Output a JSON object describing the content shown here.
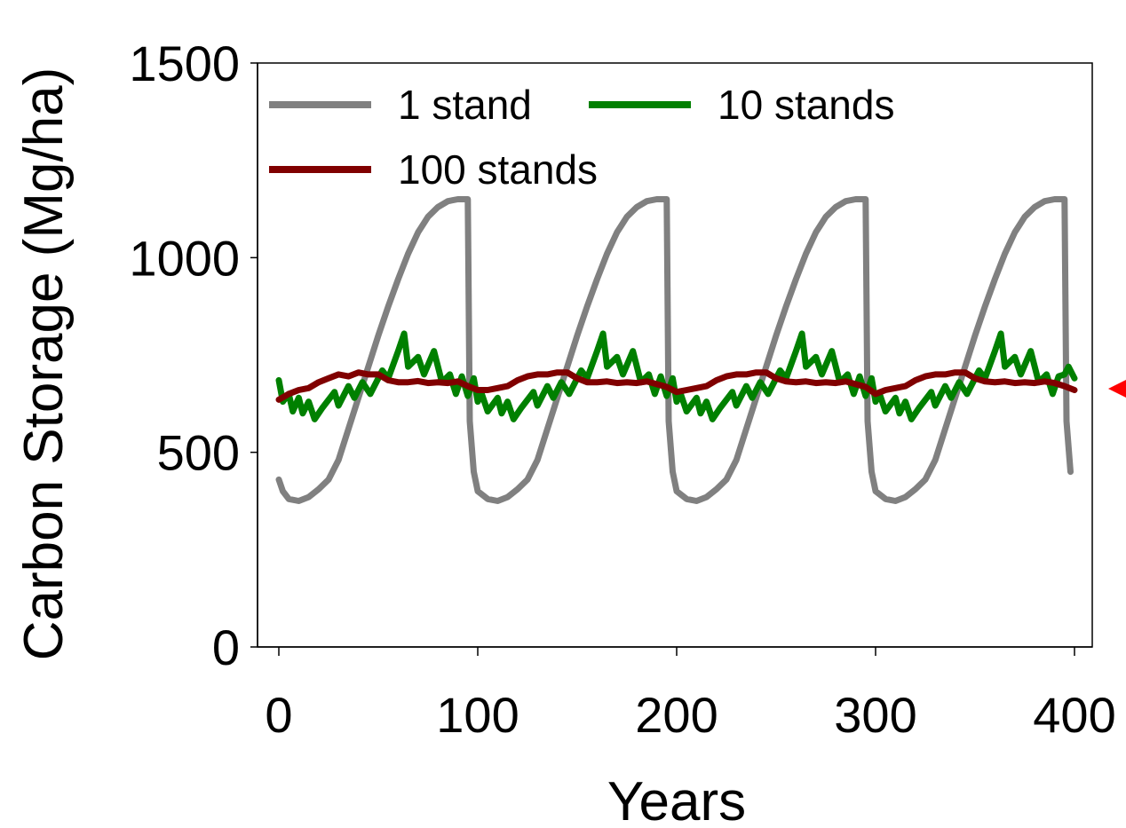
{
  "chart_data": {
    "type": "line",
    "title": "",
    "xlabel": "Years",
    "ylabel": "Carbon Storage (Mg/ha)",
    "xlim": [
      0,
      400
    ],
    "ylim": [
      0,
      1500
    ],
    "x_ticks": [
      "0",
      "100",
      "200",
      "300",
      "400"
    ],
    "y_ticks": [
      "0",
      "500",
      "1000",
      "1500"
    ],
    "grid": false,
    "legend_position": "top-left",
    "series": [
      {
        "name": "1 stand",
        "color": "#808080",
        "points": [
          [
            0,
            430
          ],
          [
            2,
            400
          ],
          [
            5,
            380
          ],
          [
            10,
            375
          ],
          [
            15,
            385
          ],
          [
            20,
            405
          ],
          [
            25,
            430
          ],
          [
            30,
            480
          ],
          [
            35,
            560
          ],
          [
            40,
            640
          ],
          [
            45,
            720
          ],
          [
            50,
            800
          ],
          [
            55,
            875
          ],
          [
            60,
            945
          ],
          [
            65,
            1010
          ],
          [
            70,
            1065
          ],
          [
            75,
            1105
          ],
          [
            80,
            1130
          ],
          [
            85,
            1145
          ],
          [
            90,
            1150
          ],
          [
            95,
            1150
          ],
          [
            96,
            580
          ],
          [
            98,
            450
          ],
          [
            100,
            400
          ],
          [
            105,
            380
          ],
          [
            110,
            375
          ],
          [
            115,
            385
          ],
          [
            120,
            405
          ],
          [
            125,
            430
          ],
          [
            130,
            480
          ],
          [
            135,
            560
          ],
          [
            140,
            640
          ],
          [
            145,
            720
          ],
          [
            150,
            800
          ],
          [
            155,
            875
          ],
          [
            160,
            945
          ],
          [
            165,
            1010
          ],
          [
            170,
            1065
          ],
          [
            175,
            1105
          ],
          [
            180,
            1130
          ],
          [
            185,
            1145
          ],
          [
            190,
            1150
          ],
          [
            195,
            1150
          ],
          [
            196,
            580
          ],
          [
            198,
            450
          ],
          [
            200,
            400
          ],
          [
            205,
            380
          ],
          [
            210,
            375
          ],
          [
            215,
            385
          ],
          [
            220,
            405
          ],
          [
            225,
            430
          ],
          [
            230,
            480
          ],
          [
            235,
            560
          ],
          [
            240,
            640
          ],
          [
            245,
            720
          ],
          [
            250,
            800
          ],
          [
            255,
            875
          ],
          [
            260,
            945
          ],
          [
            265,
            1010
          ],
          [
            270,
            1065
          ],
          [
            275,
            1105
          ],
          [
            280,
            1130
          ],
          [
            285,
            1145
          ],
          [
            290,
            1150
          ],
          [
            295,
            1150
          ],
          [
            296,
            580
          ],
          [
            298,
            450
          ],
          [
            300,
            400
          ],
          [
            305,
            380
          ],
          [
            310,
            375
          ],
          [
            315,
            385
          ],
          [
            320,
            405
          ],
          [
            325,
            430
          ],
          [
            330,
            480
          ],
          [
            335,
            560
          ],
          [
            340,
            640
          ],
          [
            345,
            720
          ],
          [
            350,
            800
          ],
          [
            355,
            875
          ],
          [
            360,
            945
          ],
          [
            365,
            1010
          ],
          [
            370,
            1065
          ],
          [
            375,
            1105
          ],
          [
            380,
            1130
          ],
          [
            385,
            1145
          ],
          [
            390,
            1150
          ],
          [
            395,
            1150
          ],
          [
            396,
            580
          ],
          [
            398,
            450
          ]
        ]
      },
      {
        "name": "10 stands",
        "color": "#008000",
        "points": [
          [
            0,
            685
          ],
          [
            2,
            630
          ],
          [
            5,
            650
          ],
          [
            7,
            605
          ],
          [
            10,
            640
          ],
          [
            12,
            600
          ],
          [
            15,
            630
          ],
          [
            18,
            585
          ],
          [
            22,
            615
          ],
          [
            28,
            655
          ],
          [
            30,
            620
          ],
          [
            35,
            670
          ],
          [
            38,
            640
          ],
          [
            42,
            680
          ],
          [
            46,
            650
          ],
          [
            52,
            710
          ],
          [
            55,
            690
          ],
          [
            60,
            760
          ],
          [
            63,
            805
          ],
          [
            65,
            720
          ],
          [
            70,
            745
          ],
          [
            73,
            700
          ],
          [
            78,
            760
          ],
          [
            82,
            680
          ],
          [
            86,
            700
          ],
          [
            89,
            650
          ],
          [
            92,
            695
          ],
          [
            95,
            645
          ],
          [
            98,
            690
          ],
          [
            100,
            630
          ],
          [
            102,
            650
          ],
          [
            105,
            605
          ],
          [
            110,
            640
          ],
          [
            112,
            600
          ],
          [
            115,
            630
          ],
          [
            118,
            585
          ],
          [
            122,
            615
          ],
          [
            128,
            655
          ],
          [
            130,
            620
          ],
          [
            135,
            670
          ],
          [
            138,
            640
          ],
          [
            142,
            680
          ],
          [
            146,
            650
          ],
          [
            152,
            710
          ],
          [
            155,
            690
          ],
          [
            160,
            760
          ],
          [
            163,
            805
          ],
          [
            165,
            720
          ],
          [
            170,
            745
          ],
          [
            173,
            700
          ],
          [
            178,
            760
          ],
          [
            182,
            680
          ],
          [
            186,
            700
          ],
          [
            189,
            650
          ],
          [
            192,
            695
          ],
          [
            195,
            645
          ],
          [
            198,
            690
          ],
          [
            200,
            630
          ],
          [
            202,
            650
          ],
          [
            205,
            605
          ],
          [
            210,
            640
          ],
          [
            212,
            600
          ],
          [
            215,
            630
          ],
          [
            218,
            585
          ],
          [
            222,
            615
          ],
          [
            228,
            655
          ],
          [
            230,
            620
          ],
          [
            235,
            670
          ],
          [
            238,
            640
          ],
          [
            242,
            680
          ],
          [
            246,
            650
          ],
          [
            252,
            710
          ],
          [
            255,
            690
          ],
          [
            260,
            760
          ],
          [
            263,
            805
          ],
          [
            265,
            720
          ],
          [
            270,
            745
          ],
          [
            273,
            700
          ],
          [
            278,
            760
          ],
          [
            282,
            680
          ],
          [
            286,
            700
          ],
          [
            289,
            650
          ],
          [
            292,
            695
          ],
          [
            295,
            645
          ],
          [
            298,
            690
          ],
          [
            300,
            630
          ],
          [
            302,
            650
          ],
          [
            305,
            605
          ],
          [
            310,
            640
          ],
          [
            312,
            600
          ],
          [
            315,
            630
          ],
          [
            318,
            585
          ],
          [
            322,
            615
          ],
          [
            328,
            655
          ],
          [
            330,
            620
          ],
          [
            335,
            670
          ],
          [
            338,
            640
          ],
          [
            342,
            680
          ],
          [
            346,
            650
          ],
          [
            352,
            710
          ],
          [
            355,
            690
          ],
          [
            360,
            760
          ],
          [
            363,
            805
          ],
          [
            365,
            720
          ],
          [
            370,
            745
          ],
          [
            373,
            700
          ],
          [
            378,
            760
          ],
          [
            382,
            680
          ],
          [
            386,
            700
          ],
          [
            389,
            650
          ],
          [
            392,
            695
          ],
          [
            395,
            700
          ],
          [
            397,
            720
          ],
          [
            400,
            690
          ]
        ]
      },
      {
        "name": "100 stands",
        "color": "#800000",
        "points": [
          [
            0,
            635
          ],
          [
            5,
            650
          ],
          [
            10,
            660
          ],
          [
            15,
            665
          ],
          [
            20,
            680
          ],
          [
            25,
            690
          ],
          [
            30,
            700
          ],
          [
            35,
            695
          ],
          [
            40,
            705
          ],
          [
            45,
            700
          ],
          [
            50,
            700
          ],
          [
            55,
            685
          ],
          [
            60,
            680
          ],
          [
            65,
            680
          ],
          [
            70,
            683
          ],
          [
            75,
            678
          ],
          [
            80,
            680
          ],
          [
            85,
            678
          ],
          [
            90,
            682
          ],
          [
            95,
            670
          ],
          [
            100,
            660
          ],
          [
            105,
            660
          ],
          [
            110,
            665
          ],
          [
            115,
            670
          ],
          [
            120,
            685
          ],
          [
            125,
            695
          ],
          [
            130,
            700
          ],
          [
            135,
            700
          ],
          [
            140,
            705
          ],
          [
            145,
            705
          ],
          [
            150,
            690
          ],
          [
            155,
            680
          ],
          [
            160,
            680
          ],
          [
            165,
            682
          ],
          [
            170,
            678
          ],
          [
            175,
            680
          ],
          [
            180,
            678
          ],
          [
            185,
            682
          ],
          [
            190,
            675
          ],
          [
            195,
            668
          ],
          [
            200,
            655
          ],
          [
            205,
            660
          ],
          [
            210,
            665
          ],
          [
            215,
            670
          ],
          [
            220,
            685
          ],
          [
            225,
            695
          ],
          [
            230,
            700
          ],
          [
            235,
            700
          ],
          [
            240,
            705
          ],
          [
            245,
            705
          ],
          [
            250,
            690
          ],
          [
            255,
            682
          ],
          [
            260,
            680
          ],
          [
            265,
            682
          ],
          [
            270,
            678
          ],
          [
            275,
            680
          ],
          [
            280,
            678
          ],
          [
            285,
            682
          ],
          [
            290,
            675
          ],
          [
            295,
            668
          ],
          [
            300,
            650
          ],
          [
            305,
            660
          ],
          [
            310,
            665
          ],
          [
            315,
            670
          ],
          [
            320,
            685
          ],
          [
            325,
            695
          ],
          [
            330,
            700
          ],
          [
            335,
            700
          ],
          [
            340,
            705
          ],
          [
            345,
            705
          ],
          [
            350,
            690
          ],
          [
            355,
            682
          ],
          [
            360,
            680
          ],
          [
            365,
            682
          ],
          [
            370,
            678
          ],
          [
            375,
            680
          ],
          [
            380,
            678
          ],
          [
            385,
            682
          ],
          [
            390,
            678
          ],
          [
            395,
            670
          ],
          [
            400,
            660
          ]
        ]
      }
    ]
  }
}
